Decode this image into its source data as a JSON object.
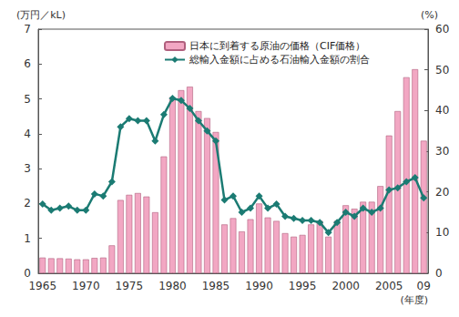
{
  "chart_data": {
    "type": "bar",
    "categories": [
      "1965",
      null,
      null,
      null,
      null,
      "1970",
      null,
      null,
      null,
      null,
      "1975",
      null,
      null,
      null,
      null,
      "1980",
      null,
      null,
      null,
      null,
      "1985",
      null,
      null,
      null,
      null,
      "1990",
      null,
      null,
      null,
      null,
      "1995",
      null,
      null,
      null,
      null,
      "2000",
      null,
      null,
      null,
      null,
      "2005",
      null,
      null,
      null,
      "09"
    ],
    "series": [
      {
        "name": "日本に到着する原油の価格（CIF価格）",
        "type": "bar",
        "color": "#f2a7c3",
        "values": [
          0.45,
          0.43,
          0.43,
          0.42,
          0.4,
          0.4,
          0.44,
          0.45,
          0.8,
          2.1,
          2.25,
          2.3,
          2.2,
          1.75,
          3.35,
          5.05,
          5.25,
          5.35,
          4.65,
          4.45,
          4.05,
          1.4,
          1.58,
          1.2,
          1.55,
          2.0,
          1.6,
          1.5,
          1.15,
          1.05,
          1.1,
          1.4,
          1.5,
          1.05,
          1.5,
          1.95,
          1.85,
          2.05,
          2.05,
          2.5,
          3.95,
          4.65,
          5.62,
          5.85,
          3.8
        ]
      },
      {
        "name": "総輸入金額に占める石油輸入金額の割合",
        "type": "line",
        "color": "#1b7b73",
        "marker": "diamond",
        "line_style": "solid",
        "axis": "y2",
        "values": [
          17,
          15.5,
          16,
          16.5,
          15.5,
          15.5,
          19.5,
          19,
          22.5,
          36,
          38,
          37.5,
          37.5,
          32.5,
          39,
          43,
          42.5,
          40.5,
          37.5,
          35,
          32.5,
          18,
          19,
          15,
          16,
          19,
          16,
          17,
          14,
          13.5,
          13,
          13,
          12.5,
          10,
          12.5,
          15,
          14,
          16,
          15,
          16,
          20.5,
          21,
          22.5,
          23.5,
          18.5
        ]
      }
    ],
    "y_label": "(万円／kL)",
    "y2_label": "(%)",
    "x_label": "(年度)",
    "ylim": [
      0,
      7
    ],
    "yticks": [
      0,
      1,
      2,
      3,
      4,
      5,
      6,
      7
    ],
    "y2lim": [
      0,
      60
    ],
    "y2ticks": [
      0,
      10,
      20,
      30,
      40,
      50,
      60
    ],
    "grid": false,
    "legend": "top"
  }
}
